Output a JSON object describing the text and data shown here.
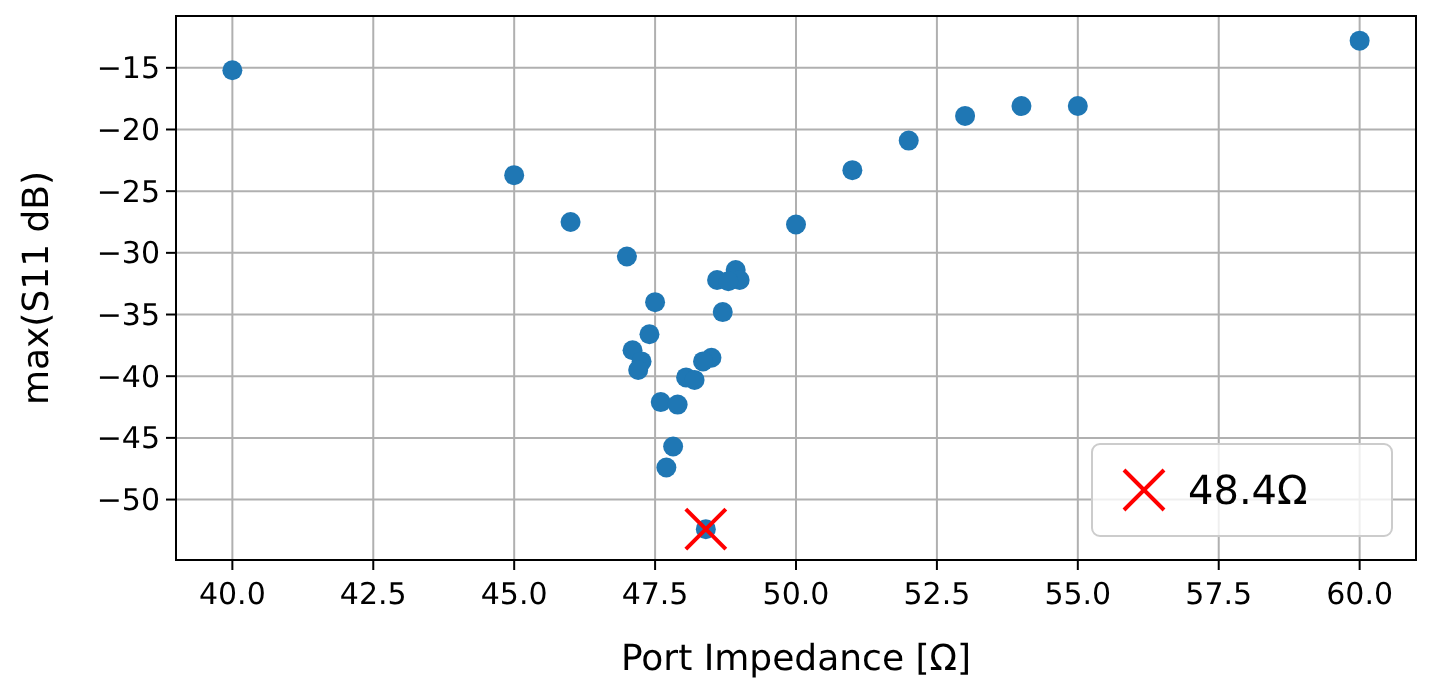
{
  "chart_data": {
    "type": "scatter",
    "xlabel": "Port Impedance [Ω]",
    "ylabel": "max(S11 dB)",
    "xlim": [
      39,
      61
    ],
    "xticks": [
      {
        "value": 40,
        "label": "40.0"
      },
      42.5,
      {
        "value": 45,
        "label": "45.0"
      },
      47.5,
      {
        "value": 50,
        "label": "50.0"
      },
      52.5,
      {
        "value": 55,
        "label": "55.0"
      },
      57.5,
      {
        "value": 60,
        "label": "60.0"
      }
    ],
    "ylim": [
      -54.9,
      -10.8
    ],
    "yticks": [
      {
        "value": -50,
        "label": "−50"
      },
      {
        "value": -45,
        "label": "−45"
      },
      {
        "value": -40,
        "label": "−40"
      },
      {
        "value": -35,
        "label": "−35"
      },
      {
        "value": -30,
        "label": "−30"
      },
      {
        "value": -25,
        "label": "−25"
      },
      {
        "value": -20,
        "label": "−20"
      },
      {
        "value": -15,
        "label": "−15"
      }
    ],
    "grid": true,
    "legend": "bottom right",
    "series": [
      {
        "color": "#1f77b4",
        "marker": "circle",
        "x": [
          40,
          45,
          46,
          47,
          47.5,
          50,
          51,
          52,
          53,
          54,
          55,
          60,
          48.6,
          48.93,
          49.0,
          48.8,
          48.7,
          47.4,
          47.1,
          47.26,
          47.2,
          48.5,
          48.35,
          48.05,
          48.2,
          47.6,
          47.9,
          47.82,
          47.7,
          48.4
        ],
        "values": [
          -15.2,
          -23.7,
          -27.5,
          -30.3,
          -34.0,
          -27.7,
          -23.3,
          -20.9,
          -18.9,
          -18.1,
          -18.1,
          -12.8,
          -32.2,
          -31.4,
          -32.2,
          -32.3,
          -34.8,
          -36.6,
          -37.9,
          -38.8,
          -39.5,
          -38.5,
          -38.8,
          -40.1,
          -40.3,
          -42.1,
          -42.3,
          -45.7,
          -47.4,
          -52.4
        ]
      },
      {
        "name": "48.4Ω",
        "color": "#ff0000",
        "marker": "cross",
        "x": [
          48.4
        ],
        "values": [
          -52.4
        ]
      }
    ]
  }
}
